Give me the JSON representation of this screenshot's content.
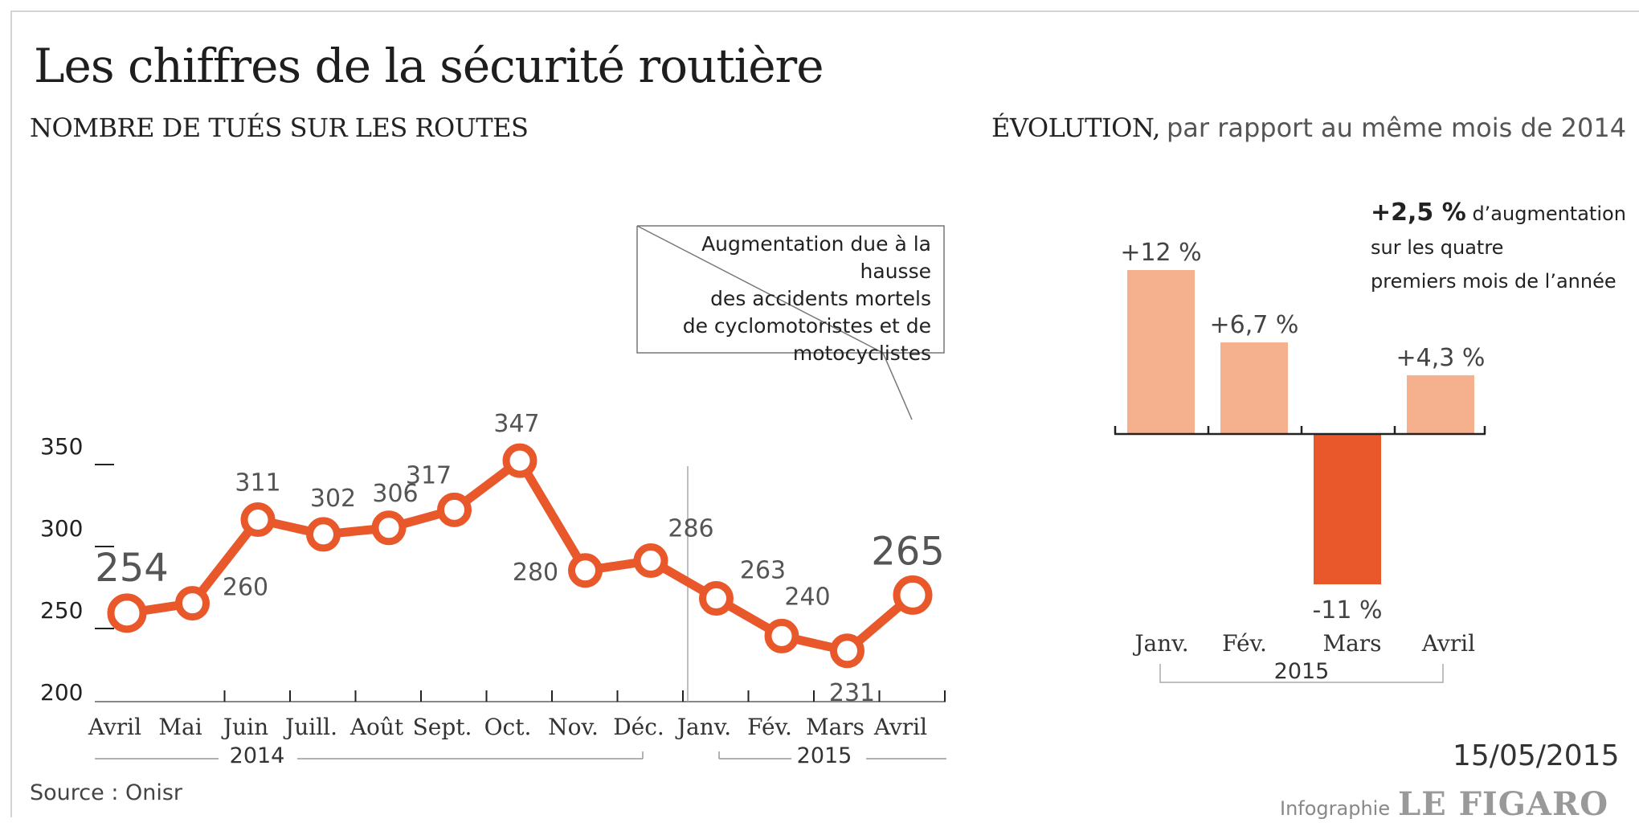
{
  "title": "Les chiffres de la sécurité routière",
  "left_subtitle": "NOMBRE DE TUÉS SUR LES ROUTES",
  "right_subtitle_bold": "ÉVOLUTION,",
  "right_subtitle_light": "par rapport au même mois de 2014",
  "annotation": [
    "Augmentation due à la hausse",
    "des accidents mortels",
    "de cyclomotoristes et de",
    "motocyclistes"
  ],
  "summary": {
    "highlight": "+2,5 %",
    "line1_rest": "d’augmentation",
    "line2": "sur les quatre",
    "line3": "premiers mois de l’année"
  },
  "date": "15/05/2015",
  "source": "Source : Onisr",
  "credit": {
    "label": "Infographie",
    "brand": "LE FIGARO"
  },
  "colors": {
    "accent": "#e8582a",
    "light_bar": "#f5b08e",
    "text": "#222222",
    "grey": "#555555"
  },
  "chart_data": [
    {
      "type": "line",
      "title": "NOMBRE DE TUÉS SUR LES ROUTES",
      "categories": [
        "Avril",
        "Mai",
        "Juin",
        "Juill.",
        "Août",
        "Sept.",
        "Oct.",
        "Nov.",
        "Déc.",
        "Janv.",
        "Fév.",
        "Mars",
        "Avril"
      ],
      "values": [
        254,
        260,
        311,
        302,
        306,
        317,
        347,
        280,
        286,
        263,
        240,
        231,
        265
      ],
      "value_labels": [
        "254",
        "260",
        "311",
        "302",
        "306",
        "317",
        "347",
        "280",
        "286",
        "263",
        "240",
        "231",
        "265"
      ],
      "y_ticks": [
        200,
        250,
        300,
        350
      ],
      "ylim": [
        200,
        350
      ],
      "year_groups": [
        {
          "label": "2014"
        },
        {
          "label": "2015"
        }
      ]
    },
    {
      "type": "bar",
      "title": "ÉVOLUTION, par rapport au même mois de 2014",
      "categories": [
        "Janv.",
        "Fév.",
        "Mars",
        "Avril"
      ],
      "values": [
        12,
        6.7,
        -11,
        4.3
      ],
      "value_labels": [
        "+12 %",
        "+6,7 %",
        "-11 %",
        "+4,3 %"
      ],
      "year_label": "2015"
    }
  ]
}
